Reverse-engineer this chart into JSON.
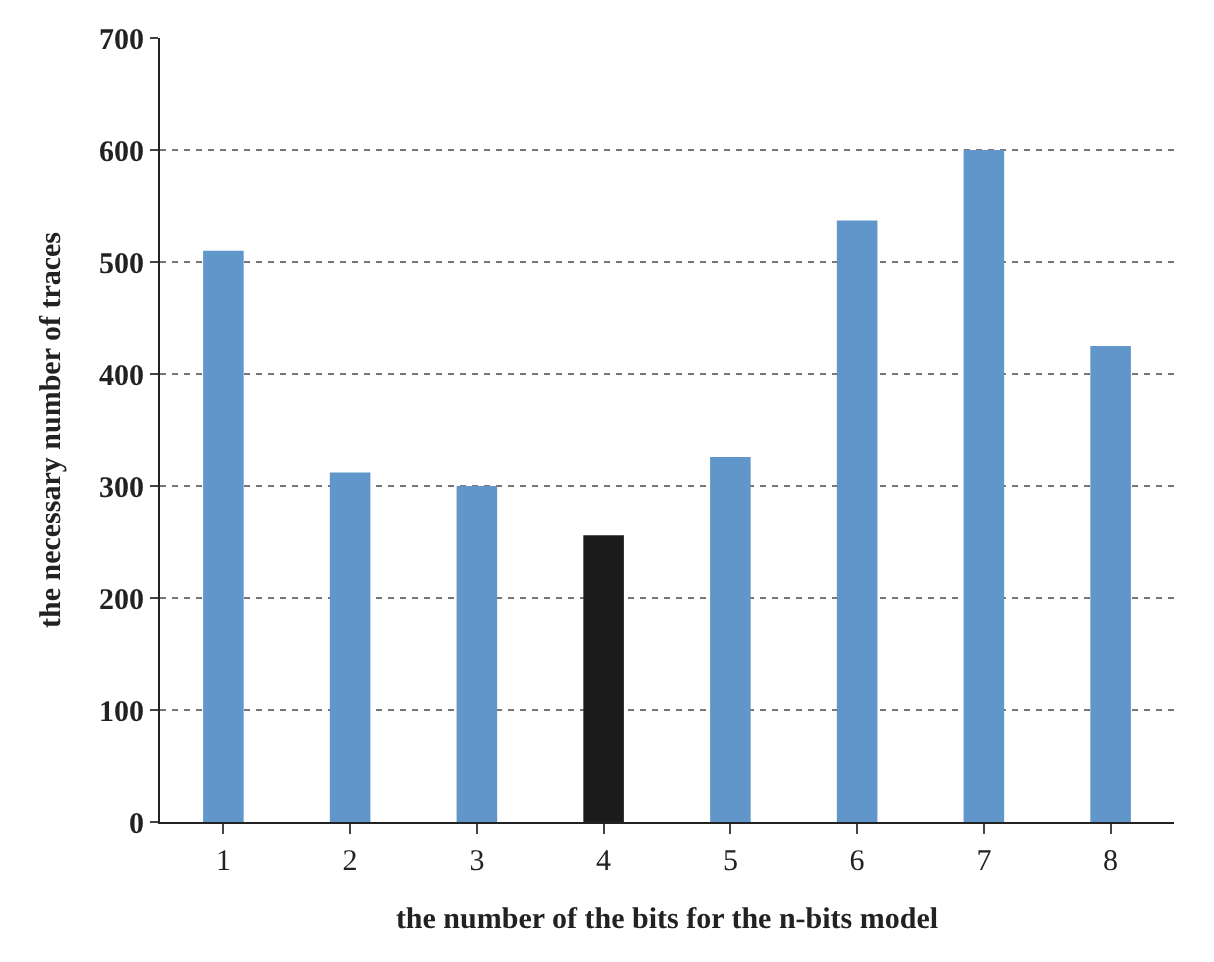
{
  "chart_data": {
    "type": "bar",
    "xlabel": "the number of the bits for the n-bits model",
    "ylabel": "the necessary number of traces",
    "categories": [
      "1",
      "2",
      "3",
      "4",
      "5",
      "6",
      "7",
      "8"
    ],
    "values": [
      510,
      312,
      300,
      256,
      326,
      537,
      600,
      425
    ],
    "colors": [
      "#6096c9",
      "#6096c9",
      "#6096c9",
      "#1c1c1c",
      "#6096c9",
      "#6096c9",
      "#6096c9",
      "#6096c9"
    ],
    "ylim": [
      0,
      700
    ],
    "yticks": [
      0,
      100,
      200,
      300,
      400,
      500,
      600,
      700
    ],
    "grid": "y"
  }
}
